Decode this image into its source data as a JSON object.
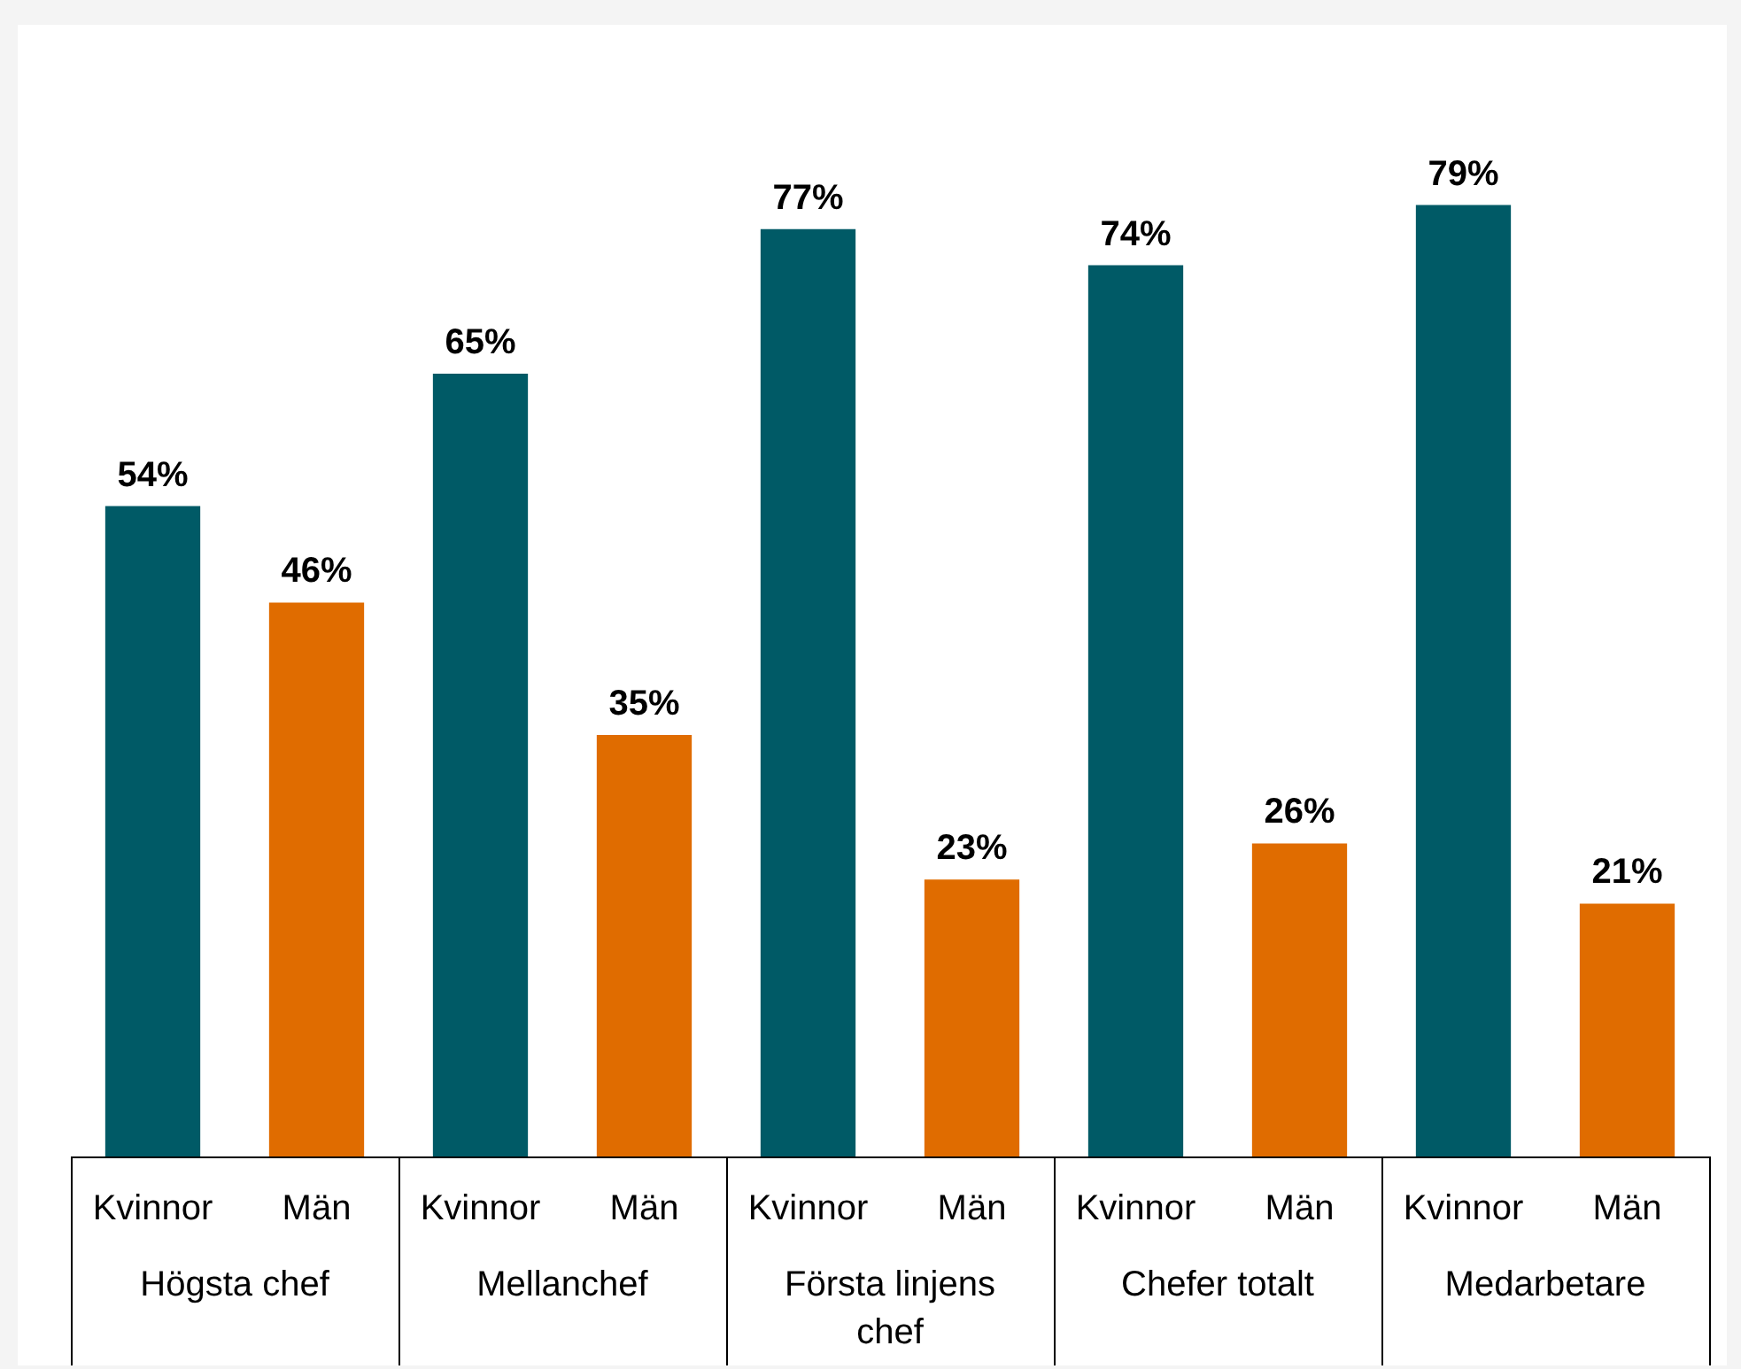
{
  "chart_data": {
    "type": "bar",
    "categories": [
      "Högsta chef",
      "Mellanchef",
      "Första linjens chef",
      "Chefer totalt",
      "Medarbetare"
    ],
    "series": [
      {
        "name": "Kvinnor",
        "color": "#005a66",
        "values": [
          54,
          65,
          77,
          74,
          79
        ],
        "value_labels": [
          "54%",
          "65%",
          "77%",
          "74%",
          "79%"
        ]
      },
      {
        "name": "Män",
        "color": "#e06c00",
        "values": [
          46,
          35,
          23,
          26,
          21
        ],
        "value_labels": [
          "46%",
          "35%",
          "23%",
          "26%",
          "21%"
        ]
      }
    ],
    "legend": false
  }
}
